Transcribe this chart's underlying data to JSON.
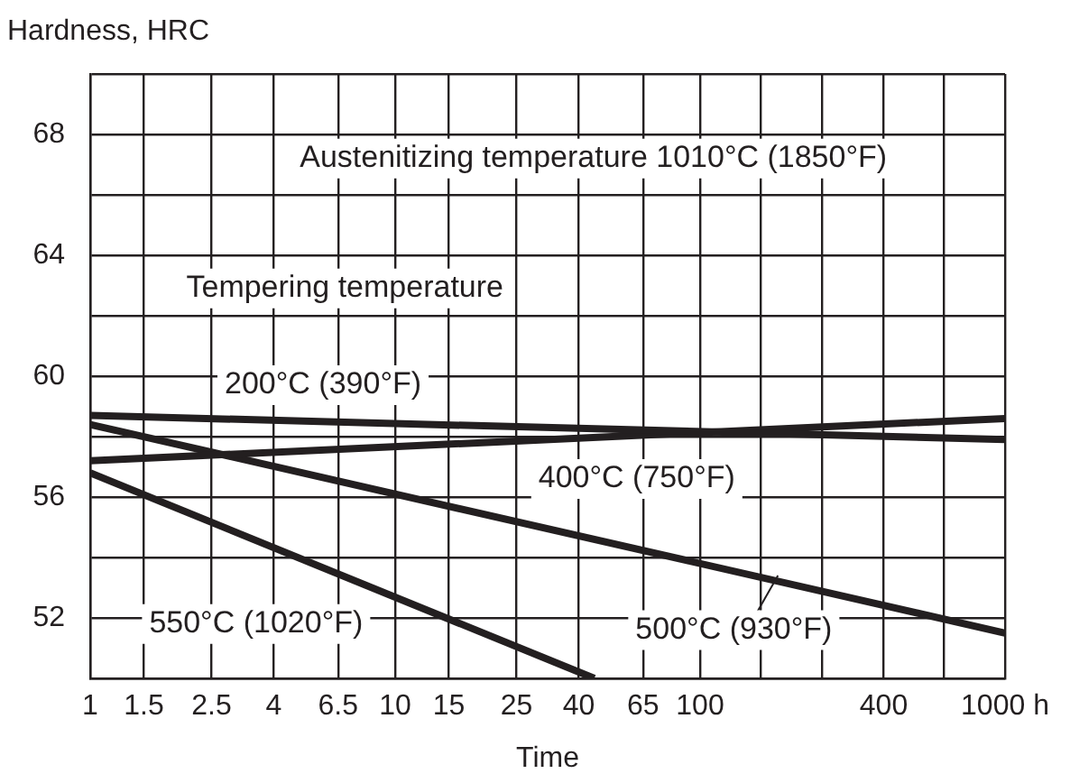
{
  "chart_data": {
    "type": "line",
    "ylabel": "Hardness, HRC",
    "xlabel": "Time",
    "log": "x",
    "grid": true,
    "marker": "none",
    "line_style": "solid",
    "xlim": [
      1,
      1000
    ],
    "xticks": [
      1,
      1.5,
      2.5,
      4,
      6.5,
      10,
      15,
      25,
      40,
      65,
      100,
      {
        "value": 158.5,
        "label": null
      },
      {
        "value": 251.2,
        "label": null
      },
      400,
      {
        "value": 631,
        "label": null
      },
      {
        "value": 1000,
        "label": "1000 h"
      }
    ],
    "ylim": [
      50,
      70
    ],
    "yticks": [
      {
        "value": 50,
        "label": null
      },
      52,
      {
        "value": 54,
        "label": null
      },
      56,
      {
        "value": 58,
        "label": null
      },
      60,
      {
        "value": 62,
        "label": null
      },
      64,
      {
        "value": 66,
        "label": null
      },
      68,
      {
        "value": 70,
        "label": null
      }
    ],
    "annotations": [
      "Austenitizing temperature 1010°C (1850°F)",
      "Tempering temperature"
    ],
    "series": [
      {
        "name": "200°C (390°F)",
        "color": "#231f20",
        "x": [
          1,
          1000
        ],
        "values": [
          58.7,
          57.9
        ]
      },
      {
        "name": "400°C (750°F)",
        "color": "#231f20",
        "x": [
          1,
          1000
        ],
        "values": [
          57.2,
          58.6
        ]
      },
      {
        "name": "500°C (930°F)",
        "color": "#231f20",
        "x": [
          1,
          1000
        ],
        "values": [
          58.4,
          51.5
        ]
      },
      {
        "name": "550°C (1020°F)",
        "color": "#231f20",
        "x": [
          1,
          45
        ],
        "values": [
          56.8,
          50
        ]
      }
    ]
  }
}
